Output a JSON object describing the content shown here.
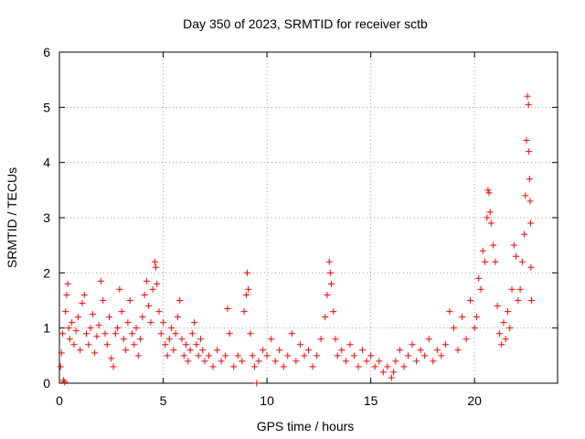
{
  "chart_data": {
    "type": "scatter",
    "title": "Day 350 of 2023, SRMTID for receiver sctb",
    "xlabel": "GPS time / hours",
    "ylabel": "SRMTID / TECUs",
    "xlim": [
      0,
      24
    ],
    "ylim": [
      0,
      6
    ],
    "xticks": [
      0,
      5,
      10,
      15,
      20
    ],
    "yticks": [
      0,
      1,
      2,
      3,
      4,
      5,
      6
    ],
    "grid": true,
    "marker": "plus",
    "color": "#ff0000",
    "series": [
      {
        "name": "sctb",
        "points": [
          [
            0.05,
            0.3
          ],
          [
            0.1,
            0.55
          ],
          [
            0.15,
            0.9
          ],
          [
            0.2,
            0.05
          ],
          [
            0.25,
            0.02
          ],
          [
            0.3,
            1.3
          ],
          [
            0.35,
            1.6
          ],
          [
            0.4,
            1.8
          ],
          [
            0.45,
            1.0
          ],
          [
            0.5,
            0.8
          ],
          [
            0.6,
            1.1
          ],
          [
            0.7,
            0.7
          ],
          [
            0.8,
            0.95
          ],
          [
            0.9,
            1.2
          ],
          [
            1.0,
            0.6
          ],
          [
            1.1,
            1.45
          ],
          [
            1.2,
            1.6
          ],
          [
            1.3,
            0.9
          ],
          [
            1.4,
            0.7
          ],
          [
            1.5,
            1.0
          ],
          [
            1.6,
            1.25
          ],
          [
            1.7,
            0.55
          ],
          [
            1.8,
            0.85
          ],
          [
            1.9,
            1.05
          ],
          [
            2.0,
            1.85
          ],
          [
            2.1,
            1.5
          ],
          [
            2.2,
            0.9
          ],
          [
            2.3,
            0.7
          ],
          [
            2.4,
            1.2
          ],
          [
            2.5,
            0.45
          ],
          [
            2.6,
            0.3
          ],
          [
            2.7,
            0.9
          ],
          [
            2.8,
            1.0
          ],
          [
            2.9,
            1.7
          ],
          [
            3.0,
            1.3
          ],
          [
            3.1,
            0.8
          ],
          [
            3.2,
            0.6
          ],
          [
            3.3,
            1.1
          ],
          [
            3.4,
            1.5
          ],
          [
            3.5,
            0.9
          ],
          [
            3.6,
            0.7
          ],
          [
            3.7,
            1.0
          ],
          [
            3.8,
            0.5
          ],
          [
            3.9,
            0.8
          ],
          [
            4.0,
            1.2
          ],
          [
            4.1,
            1.6
          ],
          [
            4.2,
            1.85
          ],
          [
            4.3,
            1.4
          ],
          [
            4.4,
            1.1
          ],
          [
            4.5,
            1.7
          ],
          [
            4.6,
            2.2
          ],
          [
            4.65,
            2.1
          ],
          [
            4.7,
            1.8
          ],
          [
            4.8,
            1.3
          ],
          [
            4.9,
            0.9
          ],
          [
            5.0,
            1.1
          ],
          [
            5.1,
            0.7
          ],
          [
            5.2,
            0.5
          ],
          [
            5.3,
            0.8
          ],
          [
            5.4,
            1.0
          ],
          [
            5.5,
            0.6
          ],
          [
            5.6,
            0.9
          ],
          [
            5.7,
            1.2
          ],
          [
            5.8,
            1.5
          ],
          [
            5.9,
            0.8
          ],
          [
            6.0,
            0.5
          ],
          [
            6.1,
            0.7
          ],
          [
            6.2,
            0.4
          ],
          [
            6.3,
            0.6
          ],
          [
            6.4,
            0.9
          ],
          [
            6.5,
            1.1
          ],
          [
            6.6,
            0.7
          ],
          [
            6.7,
            0.5
          ],
          [
            6.8,
            0.8
          ],
          [
            6.9,
            0.6
          ],
          [
            7.0,
            0.4
          ],
          [
            7.2,
            0.5
          ],
          [
            7.4,
            0.3
          ],
          [
            7.6,
            0.6
          ],
          [
            7.8,
            0.4
          ],
          [
            8.0,
            0.5
          ],
          [
            8.1,
            1.35
          ],
          [
            8.2,
            0.9
          ],
          [
            8.4,
            0.3
          ],
          [
            8.6,
            0.5
          ],
          [
            8.8,
            0.4
          ],
          [
            8.9,
            1.3
          ],
          [
            9.0,
            1.6
          ],
          [
            9.05,
            2.0
          ],
          [
            9.1,
            1.7
          ],
          [
            9.2,
            0.9
          ],
          [
            9.3,
            0.5
          ],
          [
            9.4,
            0.3
          ],
          [
            9.5,
            0.0
          ],
          [
            9.6,
            0.4
          ],
          [
            9.8,
            0.6
          ],
          [
            10.0,
            0.5
          ],
          [
            10.2,
            0.8
          ],
          [
            10.4,
            0.4
          ],
          [
            10.6,
            0.6
          ],
          [
            10.8,
            0.3
          ],
          [
            11.0,
            0.5
          ],
          [
            11.2,
            0.9
          ],
          [
            11.4,
            0.4
          ],
          [
            11.6,
            0.7
          ],
          [
            11.8,
            0.5
          ],
          [
            12.0,
            0.6
          ],
          [
            12.2,
            0.3
          ],
          [
            12.4,
            0.5
          ],
          [
            12.6,
            0.8
          ],
          [
            12.8,
            1.2
          ],
          [
            12.9,
            1.6
          ],
          [
            13.0,
            2.2
          ],
          [
            13.05,
            2.0
          ],
          [
            13.1,
            1.8
          ],
          [
            13.2,
            1.3
          ],
          [
            13.3,
            0.8
          ],
          [
            13.4,
            0.5
          ],
          [
            13.6,
            0.6
          ],
          [
            13.8,
            0.4
          ],
          [
            14.0,
            0.7
          ],
          [
            14.2,
            0.5
          ],
          [
            14.4,
            0.3
          ],
          [
            14.6,
            0.6
          ],
          [
            14.8,
            0.4
          ],
          [
            15.0,
            0.5
          ],
          [
            15.2,
            0.3
          ],
          [
            15.4,
            0.4
          ],
          [
            15.6,
            0.2
          ],
          [
            15.8,
            0.3
          ],
          [
            16.0,
            0.1
          ],
          [
            16.1,
            0.2
          ],
          [
            16.2,
            0.4
          ],
          [
            16.4,
            0.6
          ],
          [
            16.6,
            0.3
          ],
          [
            16.8,
            0.5
          ],
          [
            17.0,
            0.7
          ],
          [
            17.2,
            0.4
          ],
          [
            17.4,
            0.6
          ],
          [
            17.6,
            0.5
          ],
          [
            17.8,
            0.8
          ],
          [
            18.0,
            0.4
          ],
          [
            18.2,
            0.6
          ],
          [
            18.4,
            0.5
          ],
          [
            18.6,
            0.7
          ],
          [
            18.8,
            1.3
          ],
          [
            19.0,
            1.0
          ],
          [
            19.2,
            0.6
          ],
          [
            19.4,
            1.2
          ],
          [
            19.6,
            0.8
          ],
          [
            19.8,
            1.5
          ],
          [
            20.0,
            1.0
          ],
          [
            20.1,
            1.2
          ],
          [
            20.2,
            1.9
          ],
          [
            20.3,
            1.7
          ],
          [
            20.4,
            2.4
          ],
          [
            20.5,
            2.2
          ],
          [
            20.6,
            3.0
          ],
          [
            20.65,
            3.5
          ],
          [
            20.7,
            3.45
          ],
          [
            20.75,
            3.1
          ],
          [
            20.8,
            2.9
          ],
          [
            20.9,
            2.5
          ],
          [
            21.0,
            2.2
          ],
          [
            21.1,
            1.4
          ],
          [
            21.2,
            0.9
          ],
          [
            21.3,
            0.7
          ],
          [
            21.4,
            1.1
          ],
          [
            21.5,
            0.8
          ],
          [
            21.6,
            1.3
          ],
          [
            21.7,
            1.0
          ],
          [
            21.8,
            1.7
          ],
          [
            21.9,
            2.5
          ],
          [
            22.0,
            2.3
          ],
          [
            22.1,
            1.5
          ],
          [
            22.2,
            1.7
          ],
          [
            22.3,
            2.2
          ],
          [
            22.4,
            2.7
          ],
          [
            22.45,
            3.4
          ],
          [
            22.5,
            4.4
          ],
          [
            22.55,
            5.2
          ],
          [
            22.6,
            5.05
          ],
          [
            22.62,
            4.2
          ],
          [
            22.65,
            3.7
          ],
          [
            22.68,
            3.3
          ],
          [
            22.7,
            2.9
          ],
          [
            22.72,
            2.1
          ],
          [
            22.75,
            1.5
          ]
        ]
      }
    ]
  }
}
